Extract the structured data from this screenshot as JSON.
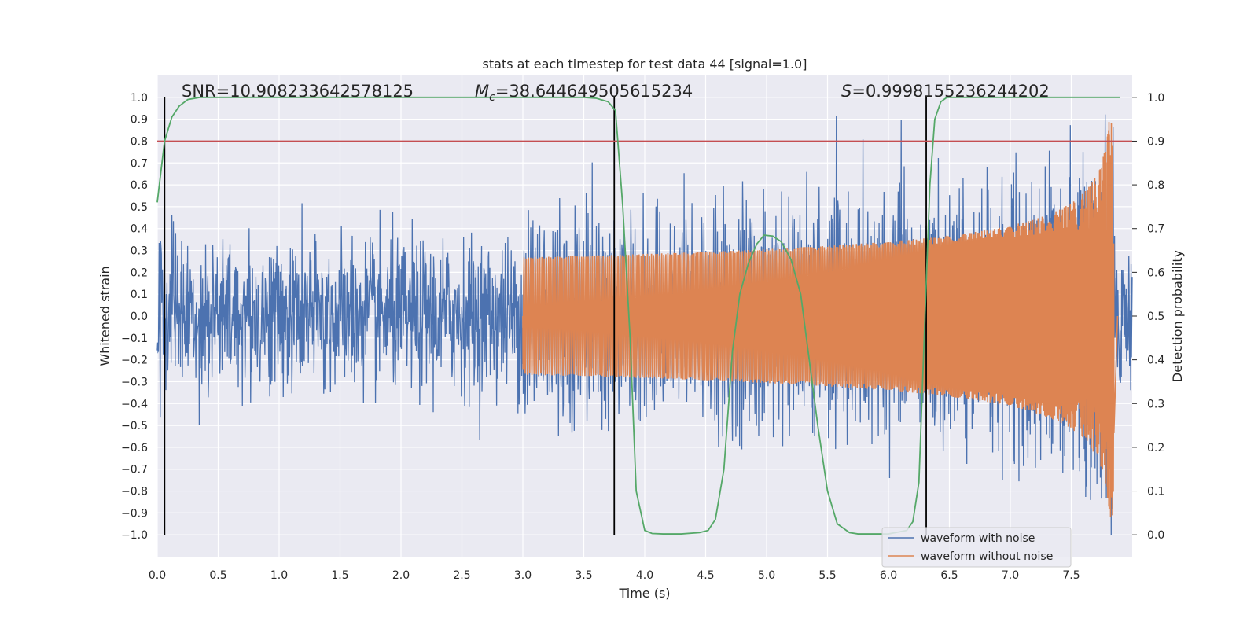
{
  "chart_data": {
    "type": "line",
    "title": "stats at each timestep for test data 44 [signal=1.0]",
    "xlabel": "Time (s)",
    "ylabel": "Whitened strain",
    "y2label": "Detection probability",
    "xlim": [
      0.0,
      8.0
    ],
    "ylim": [
      -1.1,
      1.1
    ],
    "y2lim": [
      -0.05,
      1.05
    ],
    "xticks": [
      "0.0",
      "0.5",
      "1.0",
      "1.5",
      "2.0",
      "2.5",
      "3.0",
      "3.5",
      "4.0",
      "4.5",
      "5.0",
      "5.5",
      "6.0",
      "6.5",
      "7.0",
      "7.5"
    ],
    "yticks": [
      "1.0",
      "0.9",
      "0.8",
      "0.7",
      "0.6",
      "0.5",
      "0.4",
      "0.3",
      "0.2",
      "0.1",
      "0.0",
      "−0.1",
      "−0.2",
      "−0.3",
      "−0.4",
      "−0.5",
      "−0.6",
      "−0.7",
      "−0.8",
      "−0.9",
      "−1.0"
    ],
    "y2ticks": [
      "1.0",
      "0.9",
      "0.8",
      "0.7",
      "0.6",
      "0.5",
      "0.4",
      "0.3",
      "0.2",
      "0.1",
      "0.0"
    ],
    "grid": true,
    "legend_position": "lower-right",
    "annotations": {
      "snr": "SNR=10.908233642578125",
      "mc_prefix": "=38.644649505615234",
      "s_prefix": "=0.9998155236244202"
    },
    "vertical_lines_x": [
      0.06,
      3.75,
      6.31
    ],
    "threshold_line_prob": 0.9,
    "series": [
      {
        "name": "waveform with noise",
        "color": "#4c72b0",
        "noise_sigma": 0.17,
        "x_range": [
          0.0,
          8.0
        ]
      },
      {
        "name": "waveform without noise",
        "color": "#dd8452",
        "chirp_end_time": 7.85,
        "peak_amplitude": 0.92
      },
      {
        "name": "Detection probability",
        "color": "#55a868",
        "x": [
          0.0,
          0.06,
          0.12,
          0.18,
          0.25,
          0.35,
          0.5,
          1.0,
          2.0,
          3.0,
          3.5,
          3.6,
          3.7,
          3.76,
          3.82,
          3.88,
          3.93,
          4.0,
          4.06,
          4.15,
          4.3,
          4.45,
          4.52,
          4.58,
          4.65,
          4.72,
          4.78,
          4.85,
          4.92,
          4.98,
          5.05,
          5.12,
          5.2,
          5.28,
          5.35,
          5.42,
          5.5,
          5.58,
          5.68,
          5.75,
          5.85,
          6.0,
          6.15,
          6.2,
          6.25,
          6.3,
          6.34,
          6.38,
          6.43,
          6.48,
          6.6,
          7.0,
          7.5,
          7.9
        ],
        "y": [
          0.76,
          0.9,
          0.955,
          0.98,
          0.995,
          1.0,
          1.0,
          1.0,
          1.0,
          1.0,
          1.0,
          0.998,
          0.99,
          0.97,
          0.75,
          0.45,
          0.1,
          0.01,
          0.003,
          0.002,
          0.002,
          0.005,
          0.01,
          0.035,
          0.15,
          0.42,
          0.55,
          0.62,
          0.665,
          0.685,
          0.683,
          0.67,
          0.63,
          0.55,
          0.4,
          0.25,
          0.1,
          0.025,
          0.005,
          0.002,
          0.002,
          0.002,
          0.01,
          0.03,
          0.12,
          0.5,
          0.8,
          0.95,
          0.99,
          1.0,
          1.0,
          1.0,
          1.0,
          1.0
        ]
      }
    ]
  }
}
